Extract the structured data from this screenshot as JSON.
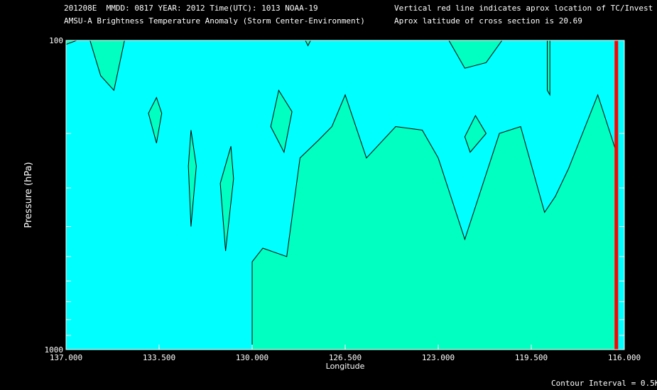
{
  "header": {
    "left_line1": "201208E  MMDD: 0817 YEAR: 2012 Time(UTC): 1013 NOAA-19",
    "left_line2": "AMSU-A Brightness Temperature Anomaly (Storm Center-Environment)",
    "right_line1": "Vertical red line indicates aprox location of TC/Invest",
    "right_line2": "Aprox latitude of cross section is 20.69"
  },
  "footer": {
    "contour_interval": "Contour Interval = 0.5K"
  },
  "colors": {
    "background": "#000000",
    "negative_fill": "#00ffff",
    "positive_fill": "#00ffc0",
    "contour_line": "#000000",
    "tc_line": "#ff0000",
    "text": "#ffffff"
  },
  "chart_data": {
    "type": "contour",
    "xlabel": "Longitude",
    "ylabel": "Pressure (hPa)",
    "xlim": [
      137.0,
      116.0
    ],
    "ylim": [
      1000,
      100
    ],
    "y_scale": "log",
    "x_tick_labels": [
      "137.000",
      "133.500",
      "130.000",
      "126.500",
      "123.000",
      "119.500",
      "116.000"
    ],
    "x_ticks": [
      137.0,
      133.5,
      130.0,
      126.5,
      123.0,
      119.5,
      116.0
    ],
    "y_tick_labels": [
      "100",
      "1000"
    ],
    "y_ticks": [
      100,
      1000
    ],
    "y_minor_ticks": [
      200,
      300,
      400,
      500,
      600,
      700,
      800,
      900
    ],
    "tc_longitude": 116.3,
    "contour_interval_K": 0.5,
    "regions": [
      {
        "name": "warm-anomaly-main",
        "points": [
          [
            130.0,
            1000
          ],
          [
            130.0,
            520
          ],
          [
            129.6,
            470
          ],
          [
            128.7,
            500
          ],
          [
            128.2,
            240
          ],
          [
            127.5,
            210
          ],
          [
            127.0,
            190
          ],
          [
            126.5,
            150
          ],
          [
            125.7,
            240
          ],
          [
            124.6,
            190
          ],
          [
            123.6,
            195
          ],
          [
            123.0,
            240
          ],
          [
            122.0,
            440
          ],
          [
            120.7,
            200
          ],
          [
            119.9,
            190
          ],
          [
            119.0,
            360
          ],
          [
            118.6,
            320
          ],
          [
            118.1,
            260
          ],
          [
            117.0,
            150
          ],
          [
            116.3,
            230
          ],
          [
            116.3,
            1000
          ]
        ]
      },
      {
        "name": "warm-anomaly-topleft",
        "points": [
          [
            137.0,
            100
          ],
          [
            137.0,
            103
          ],
          [
            136.6,
            100
          ]
        ]
      },
      {
        "name": "warm-anomaly-top-a",
        "points": [
          [
            136.1,
            100
          ],
          [
            134.8,
            100
          ],
          [
            135.2,
            145
          ],
          [
            135.7,
            130
          ]
        ]
      },
      {
        "name": "warm-anomaly-top-b",
        "points": [
          [
            128.0,
            100
          ],
          [
            127.8,
            100
          ],
          [
            127.9,
            104
          ]
        ]
      },
      {
        "name": "warm-anomaly-top-c",
        "points": [
          [
            122.6,
            100
          ],
          [
            120.6,
            100
          ],
          [
            121.2,
            118
          ],
          [
            122.0,
            123
          ]
        ]
      },
      {
        "name": "warm-anomaly-top-d",
        "points": [
          [
            118.9,
            100
          ],
          [
            118.8,
            100
          ],
          [
            118.8,
            150
          ],
          [
            118.9,
            145
          ]
        ]
      },
      {
        "name": "cell-1",
        "points": [
          [
            133.9,
            172
          ],
          [
            133.6,
            153
          ],
          [
            133.4,
            172
          ],
          [
            133.6,
            215
          ]
        ]
      },
      {
        "name": "cell-2",
        "points": [
          [
            132.4,
            255
          ],
          [
            132.3,
            195
          ],
          [
            132.1,
            255
          ],
          [
            132.3,
            400
          ]
        ]
      },
      {
        "name": "cell-3",
        "points": [
          [
            131.2,
            290
          ],
          [
            130.8,
            220
          ],
          [
            130.7,
            280
          ],
          [
            131.0,
            480
          ]
        ]
      },
      {
        "name": "cell-4",
        "points": [
          [
            129.3,
            190
          ],
          [
            129.0,
            145
          ],
          [
            128.5,
            170
          ],
          [
            128.8,
            230
          ]
        ]
      },
      {
        "name": "cell-5",
        "points": [
          [
            122.0,
            205
          ],
          [
            121.6,
            175
          ],
          [
            121.2,
            200
          ],
          [
            121.8,
            230
          ]
        ]
      }
    ]
  }
}
